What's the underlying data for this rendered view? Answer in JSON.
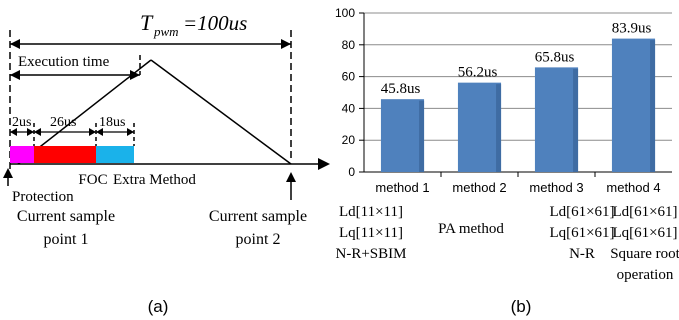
{
  "panel_a": {
    "period_label_T": "T",
    "period_label_sub": "pwm",
    "period_label_value": "=100us",
    "execution_label": "Execution time",
    "segments": [
      {
        "label": "2us",
        "duration": 2,
        "color": "#ff00ff",
        "name": "Protection"
      },
      {
        "label": "26us",
        "duration": 26,
        "color": "#ff0000",
        "name": "FOC"
      },
      {
        "label": "18us",
        "duration": 18,
        "color": "#1ab2ea",
        "name": "Extra Method"
      }
    ],
    "segment_text_foc": "FOC",
    "segment_text_extra": "Extra Method",
    "segment_text_protection": "Protection",
    "sample1_line1": "Current sample",
    "sample1_line2": "point 1",
    "sample2_line1": "Current sample",
    "sample2_line2": "point 2",
    "caption": "(a)"
  },
  "chart_data": {
    "type": "bar",
    "categories": [
      "method 1",
      "method 2",
      "method 3",
      "method 4"
    ],
    "values": [
      45.8,
      56.2,
      65.8,
      83.9
    ],
    "value_labels": [
      "45.8us",
      "56.2us",
      "65.8us",
      "83.9us"
    ],
    "ylim": [
      0,
      100
    ],
    "yticks": [
      "0",
      "20",
      "40",
      "60",
      "80",
      "100"
    ],
    "grid": true,
    "bar_color": "#4f81bd",
    "descriptions": [
      [
        "Ld[11×11]",
        "Lq[11×11]",
        "N-R+SBIM"
      ],
      [
        "PA method"
      ],
      [
        "Ld[61×61]",
        "Lq[61×61]",
        "N-R"
      ],
      [
        "Ld[61×61]",
        "Lq[61×61]",
        "Square root",
        "operation"
      ]
    ],
    "caption": "(b)"
  }
}
